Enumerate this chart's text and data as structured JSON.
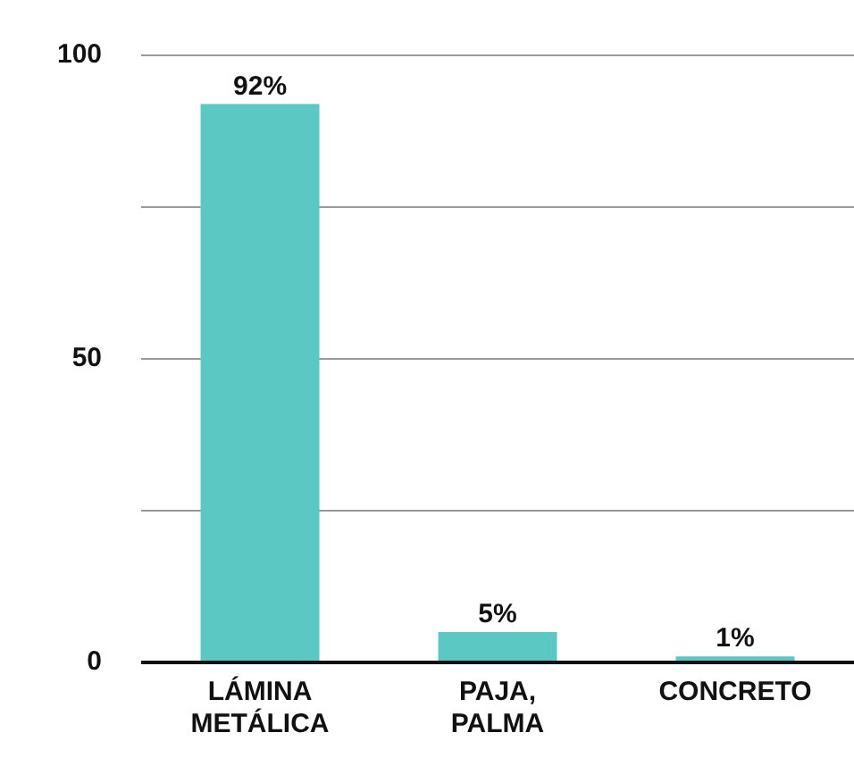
{
  "chart_data": {
    "type": "bar",
    "categories": [
      "LÁMINA METÁLICA",
      "PAJA, PALMA",
      "CONCRETO"
    ],
    "values": [
      92,
      5,
      1
    ],
    "color": "#5bc8c4",
    "value_labels": [
      "92%",
      "5%",
      "1%"
    ],
    "ylim": [
      0,
      100
    ],
    "yticks": [
      0,
      {
        "value": 25,
        "label": null
      },
      50,
      {
        "value": 75,
        "label": null
      },
      100
    ],
    "grid": "y",
    "legend": false
  }
}
